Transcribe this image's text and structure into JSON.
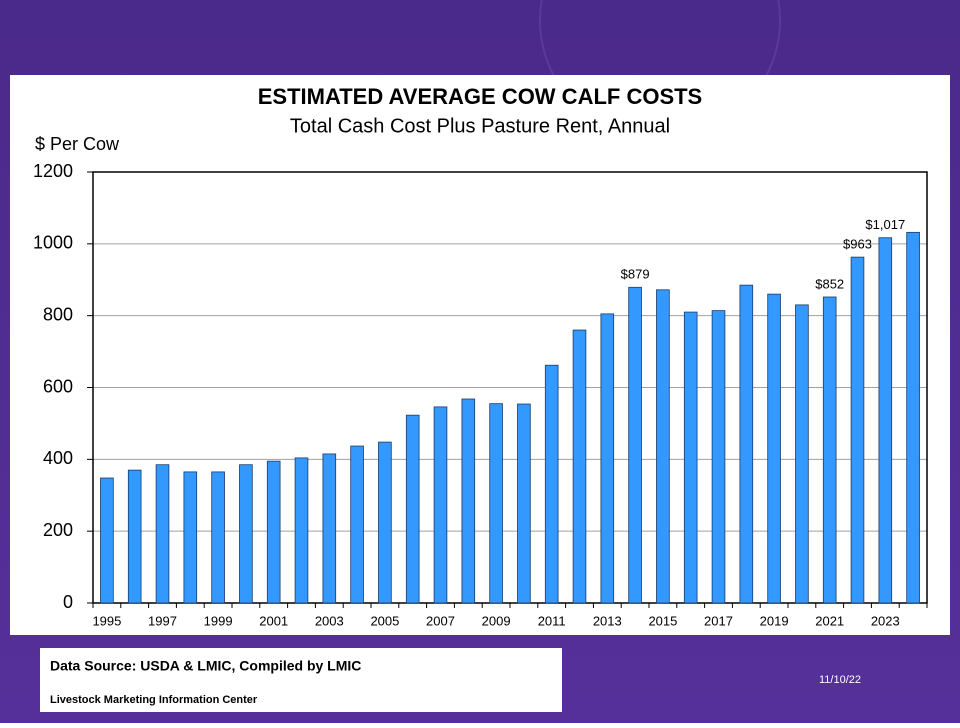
{
  "chart_data": {
    "type": "bar",
    "title": "ESTIMATED AVERAGE COW CALF COSTS",
    "subtitle": "Total Cash Cost Plus Pasture Rent, Annual",
    "y_label": "$ Per Cow",
    "categories": [
      "1995",
      null,
      "1997",
      null,
      "1999",
      null,
      "2001",
      null,
      "2003",
      null,
      "2005",
      null,
      "2007",
      null,
      "2009",
      null,
      "2011",
      null,
      "2013",
      null,
      "2015",
      null,
      "2017",
      null,
      "2019",
      null,
      "2021",
      null,
      "2023",
      null
    ],
    "values": [
      348,
      370,
      385,
      365,
      365,
      385,
      395,
      404,
      415,
      437,
      448,
      523,
      546,
      568,
      555,
      554,
      662,
      760,
      805,
      879,
      872,
      810,
      814,
      885,
      860,
      830,
      852,
      963,
      1017,
      1032
    ],
    "value_labels": [
      null,
      null,
      null,
      null,
      null,
      null,
      null,
      null,
      null,
      null,
      null,
      null,
      null,
      null,
      null,
      null,
      null,
      null,
      null,
      "$879",
      null,
      null,
      null,
      null,
      null,
      null,
      "$852",
      "$963",
      "$1,017",
      null
    ],
    "color": "#3399ff",
    "ylim": [
      0,
      1200
    ],
    "yticks": [
      0,
      200,
      400,
      600,
      800,
      1000,
      1200
    ],
    "grid": true
  },
  "footer": {
    "source": "Data Source:  USDA & LMIC, Compiled by LMIC",
    "center": "Livestock Marketing Information Center",
    "date": "11/10/22"
  }
}
